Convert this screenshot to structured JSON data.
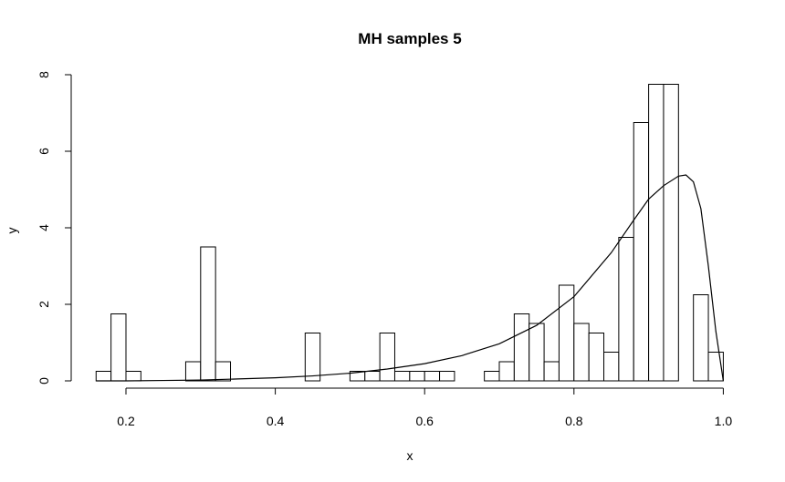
{
  "chart_data": {
    "type": "histogram",
    "title": "MH samples 5",
    "xlabel": "x",
    "ylabel": "y",
    "xlim": [
      0.12,
      1.02
    ],
    "ylim": [
      0,
      8.6
    ],
    "x_ticks": [
      0.2,
      0.4,
      0.6,
      0.8,
      1.0
    ],
    "x_tick_labels": [
      "0.2",
      "0.4",
      "0.6",
      "0.8",
      "1.0"
    ],
    "y_ticks": [
      0,
      2,
      4,
      6,
      8
    ],
    "y_tick_labels": [
      "0",
      "2",
      "4",
      "6",
      "8"
    ],
    "bin_width": 0.02,
    "bins": [
      {
        "x0": 0.16,
        "height": 0.25
      },
      {
        "x0": 0.18,
        "height": 1.75
      },
      {
        "x0": 0.2,
        "height": 0.25
      },
      {
        "x0": 0.28,
        "height": 0.5
      },
      {
        "x0": 0.3,
        "height": 3.5
      },
      {
        "x0": 0.32,
        "height": 0.5
      },
      {
        "x0": 0.44,
        "height": 1.25
      },
      {
        "x0": 0.5,
        "height": 0.25
      },
      {
        "x0": 0.52,
        "height": 0.25
      },
      {
        "x0": 0.54,
        "height": 1.25
      },
      {
        "x0": 0.56,
        "height": 0.25
      },
      {
        "x0": 0.58,
        "height": 0.25
      },
      {
        "x0": 0.6,
        "height": 0.25
      },
      {
        "x0": 0.62,
        "height": 0.25
      },
      {
        "x0": 0.68,
        "height": 0.25
      },
      {
        "x0": 0.7,
        "height": 0.5
      },
      {
        "x0": 0.72,
        "height": 1.75
      },
      {
        "x0": 0.74,
        "height": 1.5
      },
      {
        "x0": 0.76,
        "height": 0.5
      },
      {
        "x0": 0.78,
        "height": 2.5
      },
      {
        "x0": 0.8,
        "height": 1.5
      },
      {
        "x0": 0.82,
        "height": 1.25
      },
      {
        "x0": 0.84,
        "height": 0.75
      },
      {
        "x0": 0.86,
        "height": 3.75
      },
      {
        "x0": 0.88,
        "height": 6.75
      },
      {
        "x0": 0.9,
        "height": 7.75
      },
      {
        "x0": 0.92,
        "height": 7.75
      },
      {
        "x0": 0.96,
        "height": 2.25
      },
      {
        "x0": 0.98,
        "height": 0.75
      }
    ],
    "curve": {
      "x": [
        0.16,
        0.2,
        0.25,
        0.3,
        0.35,
        0.4,
        0.45,
        0.5,
        0.55,
        0.6,
        0.65,
        0.7,
        0.75,
        0.8,
        0.85,
        0.88,
        0.9,
        0.92,
        0.94,
        0.95,
        0.96,
        0.97,
        0.98,
        0.99,
        1.0
      ],
      "y": [
        0.0,
        0.0,
        0.01,
        0.02,
        0.05,
        0.08,
        0.13,
        0.2,
        0.31,
        0.45,
        0.66,
        0.97,
        1.45,
        2.2,
        3.35,
        4.2,
        4.75,
        5.1,
        5.35,
        5.38,
        5.2,
        4.5,
        3.0,
        1.3,
        0.0
      ]
    }
  }
}
